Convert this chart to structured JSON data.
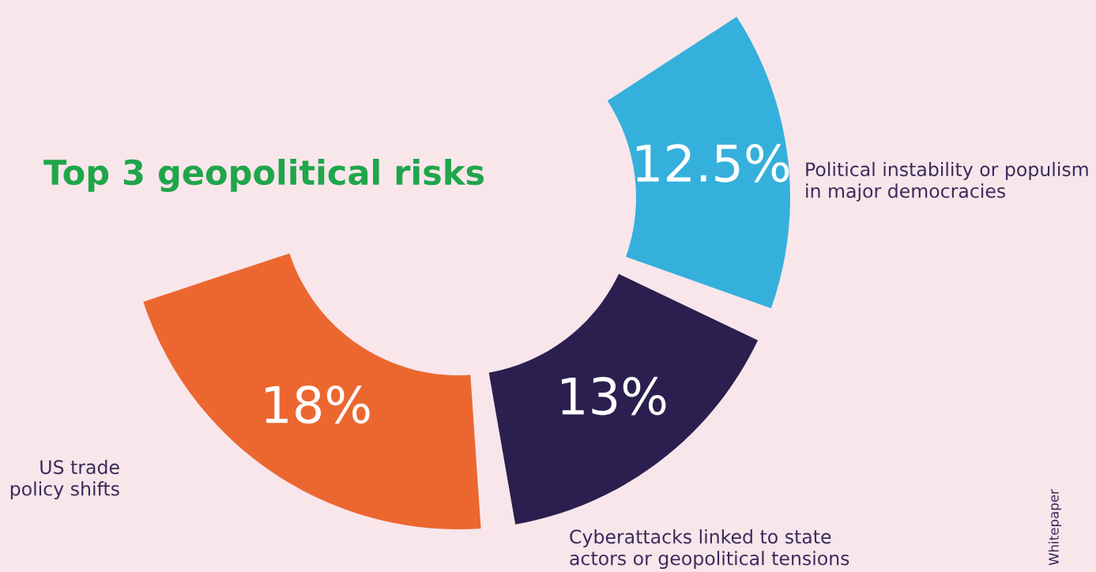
{
  "chart_data": {
    "type": "donut",
    "title": "Top 3 geopolitical risks",
    "categories": [
      "Political instability or populism\nin major democracies",
      "Cyberattacks linked to state\nactors or geopolitical tensions",
      "US trade\npolicy shifts"
    ],
    "values": [
      12.5,
      13,
      18
    ],
    "value_labels": [
      "12.5%",
      "13%",
      "18%"
    ],
    "colors": [
      "#35b0dc",
      "#2b1f4f",
      "#ec6730"
    ],
    "annotations": [
      "Whitepaper"
    ]
  }
}
